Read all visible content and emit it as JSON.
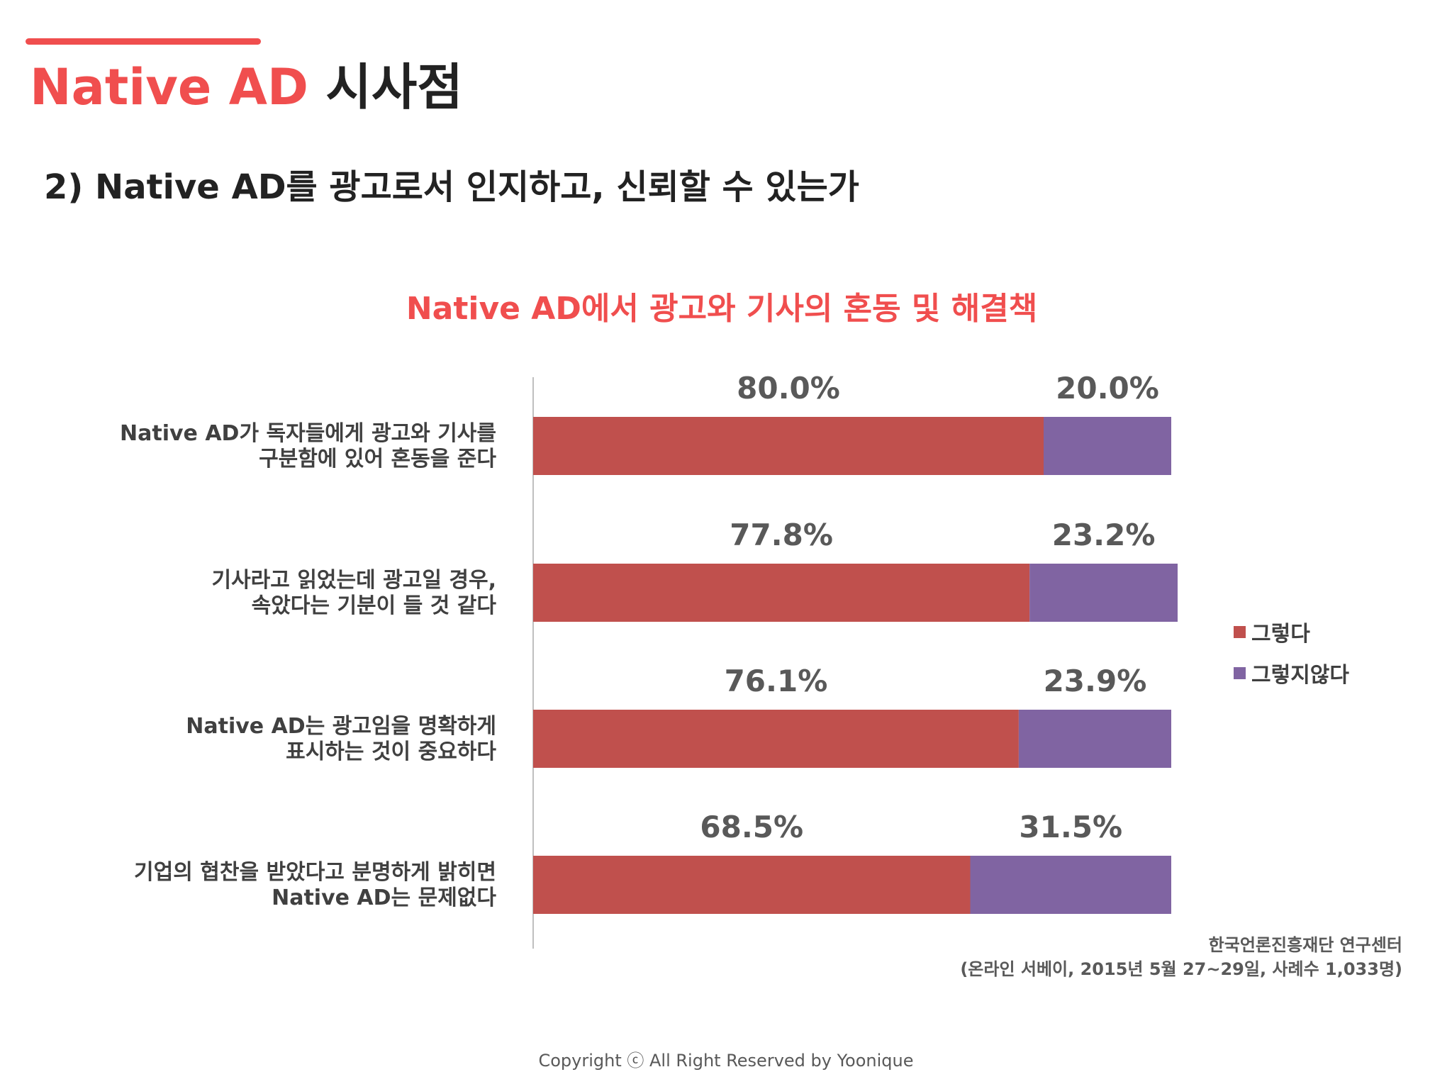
{
  "header": {
    "title_brand": "Native AD",
    "title_rest": "시사점",
    "subtitle": "2) Native AD를 광고로서 인지하고, 신뢰할 수 있는가"
  },
  "chart_data": {
    "type": "bar",
    "orientation": "horizontal",
    "stacked": true,
    "title": "Native AD에서 광고와 기사의 혼동 및 해결책",
    "categories": [
      [
        "Native AD가 독자들에게 광고와 기사를",
        "구분함에 있어 혼동을 준다"
      ],
      [
        "기사라고 읽었는데 광고일 경우,",
        "속았다는 기분이 들 것 같다"
      ],
      [
        "Native AD는 광고임을 명확하게",
        "표시하는 것이 중요하다"
      ],
      [
        "기업의 협찬을 받았다고 분명하게 밝히면",
        "Native AD는 문제없다"
      ]
    ],
    "series": [
      {
        "name": "그렇다",
        "color": "#c0504d",
        "values": [
          80.0,
          77.8,
          76.1,
          68.5
        ],
        "labels": [
          "80.0%",
          "77.8%",
          "76.1%",
          "68.5%"
        ]
      },
      {
        "name": "그렇지않다",
        "color": "#8064a2",
        "values": [
          20.0,
          23.2,
          23.9,
          31.5
        ],
        "labels": [
          "20.0%",
          "23.2%",
          "23.9%",
          "31.5%"
        ]
      }
    ],
    "xlim": [
      0,
      100
    ],
    "legend_position": "right",
    "grid": false
  },
  "source": {
    "line1": "한국언론진흥재단 연구센터",
    "line2": "(온라인 서베이, 2015년 5월 27~29일, 사례수 1,033명)"
  },
  "footer": {
    "copyright": "Copyright ⓒ All Right Reserved by Yoonique"
  }
}
